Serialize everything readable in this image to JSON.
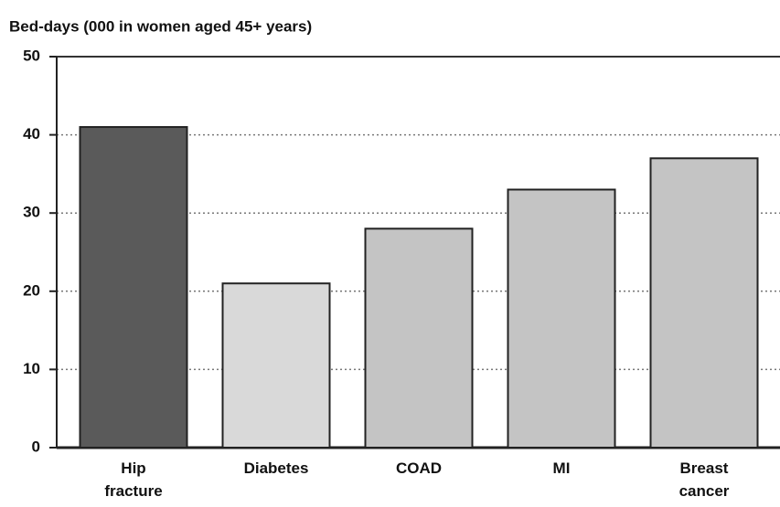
{
  "chart_data": {
    "type": "bar",
    "title": "Bed-days (000 in women aged 45+ years)",
    "categories": [
      "Hip fracture",
      "Diabetes",
      "COAD",
      "MI",
      "Breast cancer"
    ],
    "values": [
      41,
      21,
      28,
      33,
      37
    ],
    "colors": [
      "#5a5a5a",
      "#d9d9d9",
      "#c4c4c4",
      "#c4c4c4",
      "#c4c4c4"
    ],
    "ylim": [
      0,
      50
    ],
    "yticks": [
      0,
      10,
      20,
      30,
      40,
      50
    ],
    "grid": true
  }
}
